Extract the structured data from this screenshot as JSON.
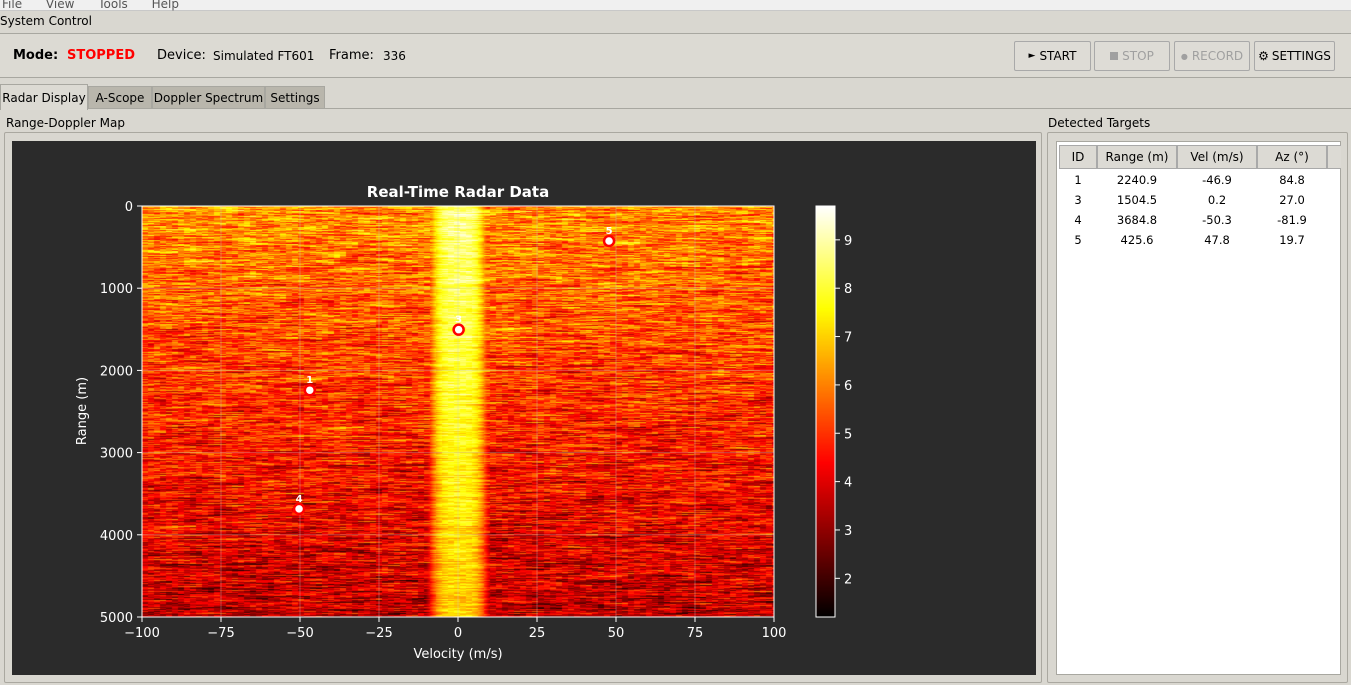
{
  "menu": [
    "File",
    "View",
    "Tools",
    "Help"
  ],
  "system_control": {
    "title": "System Control",
    "mode_label": "Mode:",
    "mode_value": "STOPPED",
    "mode_color": "#ff0000",
    "device_label": "Device:",
    "device_value": "Simulated FT601",
    "frame_label": "Frame:",
    "frame_value": "336"
  },
  "buttons": {
    "start": "START",
    "stop": "STOP",
    "record": "RECORD",
    "settings": "SETTINGS",
    "start_icon": "play-icon",
    "stop_icon": "stop-square-icon",
    "record_icon": "record-dot-icon",
    "settings_icon": "gear-icon"
  },
  "tabs": [
    {
      "label": "Radar Display",
      "active": true
    },
    {
      "label": "A-Scope"
    },
    {
      "label": "Doppler Spectrum"
    },
    {
      "label": "Settings"
    }
  ],
  "left_group": {
    "title": "Range-Doppler Map"
  },
  "right_group": {
    "title": "Detected Targets",
    "columns": [
      "ID",
      "Range (m)",
      "Vel (m/s)",
      "Az (°)"
    ],
    "rows": [
      [
        "1",
        "2240.9",
        "-46.9",
        "84.8"
      ],
      [
        "3",
        "1504.5",
        "0.2",
        "27.0"
      ],
      [
        "4",
        "3684.8",
        "-50.3",
        "-81.9"
      ],
      [
        "5",
        "425.6",
        "47.8",
        "19.7"
      ]
    ]
  },
  "chart_data": {
    "type": "heatmap",
    "title": "Real-Time Radar Data",
    "xlabel": "Velocity (m/s)",
    "ylabel": "Range (m)",
    "xlim": [
      -100,
      100
    ],
    "ylim": [
      5000,
      0
    ],
    "xticks": [
      "−100",
      "−75",
      "−50",
      "−25",
      "0",
      "25",
      "50",
      "75",
      "100"
    ],
    "yticks": [
      "0",
      "1000",
      "2000",
      "3000",
      "4000",
      "5000"
    ],
    "colormap": "hot",
    "colorbar": {
      "range": [
        1.2,
        9.7
      ],
      "ticks": [
        "2",
        "3",
        "4",
        "5",
        "6",
        "7",
        "8",
        "9"
      ]
    },
    "description_of_values": "noise floor ~3-6, bright clutter ridge near 0 m/s reaching ~9.5",
    "grid": true,
    "targets": [
      {
        "id": "1",
        "velocity": -46.9,
        "range": 2240.9
      },
      {
        "id": "3",
        "velocity": 0.2,
        "range": 1504.5
      },
      {
        "id": "4",
        "velocity": -50.3,
        "range": 3684.8
      },
      {
        "id": "5",
        "velocity": 47.8,
        "range": 425.6
      }
    ]
  }
}
